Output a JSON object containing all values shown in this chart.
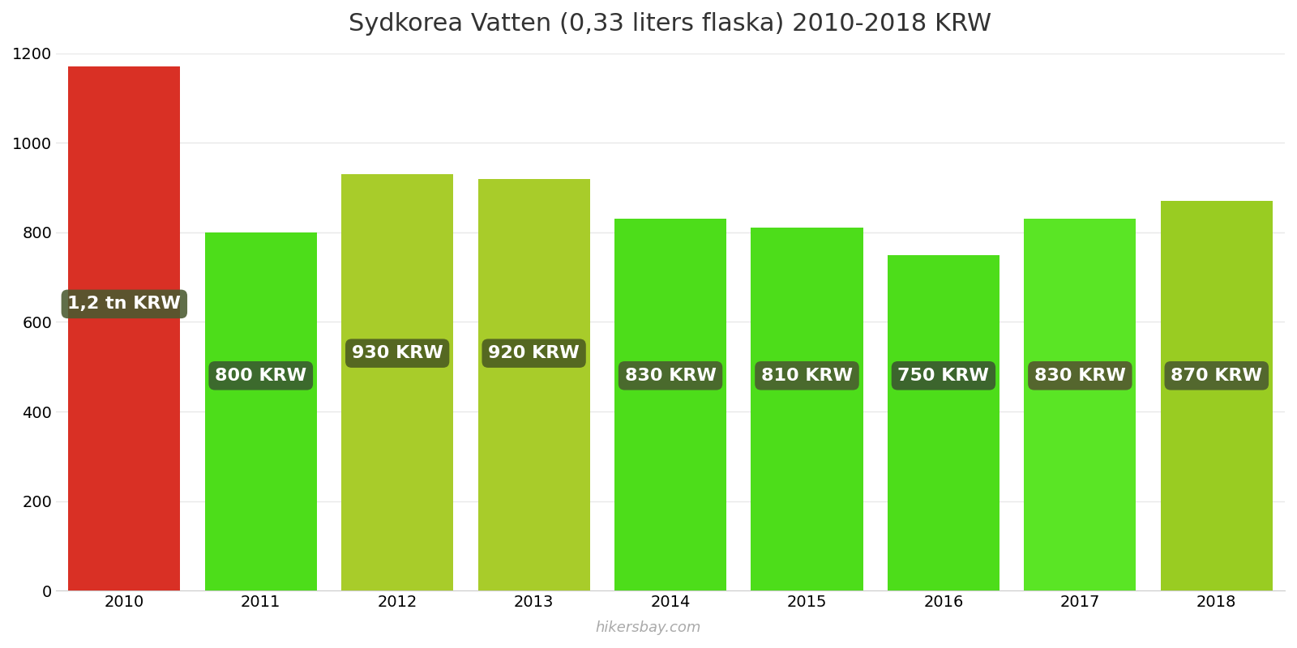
{
  "title": "Sydkorea Vatten (0,33 liters flaska) 2010-2018 KRW",
  "years": [
    2010,
    2011,
    2012,
    2013,
    2014,
    2015,
    2016,
    2017,
    2018
  ],
  "values": [
    1170,
    800,
    930,
    920,
    830,
    810,
    750,
    830,
    870
  ],
  "bar_colors": [
    "#d93025",
    "#4ddd1a",
    "#a8cc2a",
    "#a8cc2a",
    "#4ddd1a",
    "#4ddd1a",
    "#4ddd1a",
    "#5ae525",
    "#99cc22"
  ],
  "label_bg_colors": [
    "#4a5a30",
    "#3a5a30",
    "#4a5a20",
    "#4a5a20",
    "#4a5a30",
    "#4a5a30",
    "#3a5530",
    "#555530",
    "#4a5a30"
  ],
  "labels": [
    "1,2 tn KRW",
    "800 KRW",
    "930 KRW",
    "920 KRW",
    "830 KRW",
    "810 KRW",
    "750 KRW",
    "830 KRW",
    "870 KRW"
  ],
  "label_y_positions": [
    640,
    480,
    530,
    530,
    480,
    480,
    480,
    480,
    480
  ],
  "ylim": [
    0,
    1200
  ],
  "yticks": [
    0,
    200,
    400,
    600,
    800,
    1000,
    1200
  ],
  "background_color": "#ffffff",
  "grid_color": "#e8e8e8",
  "label_text_color": "#ffffff",
  "watermark": "hikersbay.com",
  "title_fontsize": 22,
  "label_fontsize": 16,
  "tick_fontsize": 14,
  "bar_width": 0.82
}
